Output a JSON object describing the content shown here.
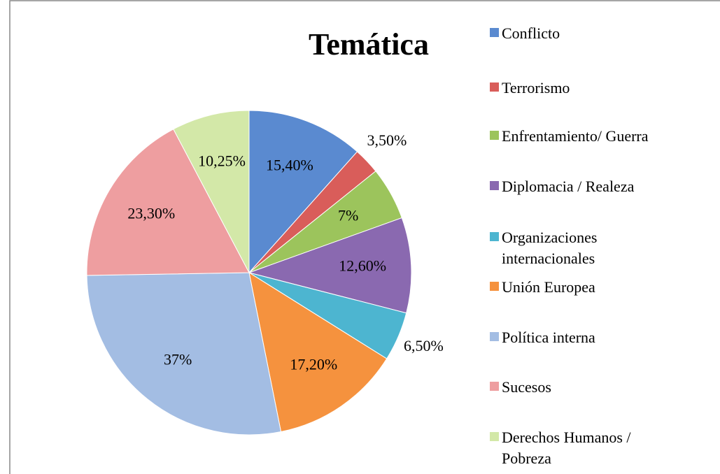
{
  "chart_data": {
    "type": "pie",
    "title": "Temática",
    "categories": [
      "Conflicto",
      "Terrorismo",
      "Enfrentamiento/ Guerra",
      "Diplomacia / Realeza",
      "Organizaciones internacionales",
      "Unión Europea",
      "Política interna",
      "Sucesos",
      "Derechos Humanos / Pobreza"
    ],
    "values": [
      15.4,
      3.5,
      7,
      12.6,
      6.5,
      17.2,
      37,
      23.3,
      10.25
    ],
    "value_labels": [
      "15,40%",
      "3,50%",
      "7%",
      "12,60%",
      "6,50%",
      "17,20%",
      "37%",
      "23,30%",
      "10,25%"
    ],
    "colors": [
      "#5a8ad0",
      "#d95d5a",
      "#9cc45c",
      "#8a69b0",
      "#4db5d0",
      "#f5923e",
      "#a3bde3",
      "#ee9ea0",
      "#d3e8a8"
    ],
    "legend": "right"
  }
}
